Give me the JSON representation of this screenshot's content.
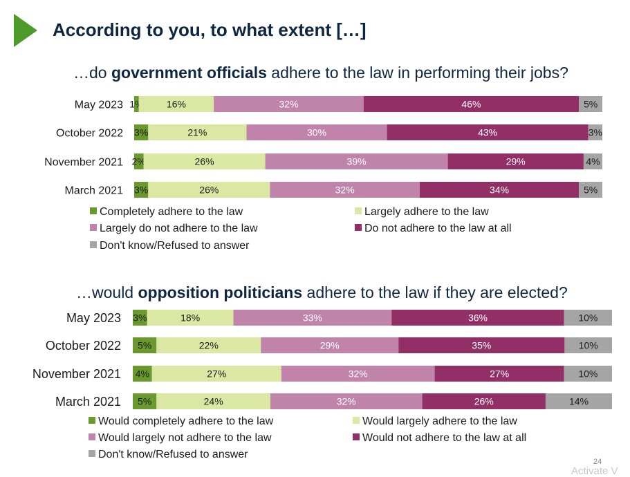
{
  "title": "According to you, to what extent […]",
  "page_number": "24",
  "watermark": "Activate V",
  "colors": {
    "completely": "#6a9a2e",
    "largely": "#dbe8a3",
    "largely_not": "#c084ab",
    "not_at_all": "#912f66",
    "dont_know": "#a5a5a5"
  },
  "chart_data": [
    {
      "type": "bar",
      "orientation": "horizontal",
      "stacked": true,
      "title_parts": [
        "…do ",
        "government officials",
        " adhere to the law in performing their jobs?"
      ],
      "categories": [
        "May 2023",
        "October 2022",
        "November 2021",
        "March 2021"
      ],
      "series": [
        {
          "name": "Completely adhere to the law",
          "values": [
            1,
            3,
            2,
            3
          ]
        },
        {
          "name": "Largely adhere to the law",
          "values": [
            16,
            21,
            26,
            26
          ]
        },
        {
          "name": "Largely do not adhere to the law",
          "values": [
            32,
            30,
            39,
            32
          ]
        },
        {
          "name": "Do not adhere to the law at all",
          "values": [
            46,
            43,
            29,
            34
          ]
        },
        {
          "name": "Don't know/Refused to answer",
          "values": [
            5,
            3,
            4,
            5
          ]
        }
      ],
      "value_suffix": "%"
    },
    {
      "type": "bar",
      "orientation": "horizontal",
      "stacked": true,
      "title_parts": [
        "…would ",
        "opposition politicians",
        " adhere to the law if they are elected?"
      ],
      "categories": [
        "May 2023",
        "October 2022",
        "November 2021",
        "March 2021"
      ],
      "series": [
        {
          "name": "Would completely adhere to the law",
          "values": [
            3,
            5,
            4,
            5
          ]
        },
        {
          "name": "Would largely adhere to the law",
          "values": [
            18,
            22,
            27,
            24
          ]
        },
        {
          "name": "Would largely not adhere to the law",
          "values": [
            33,
            29,
            32,
            32
          ]
        },
        {
          "name": "Would not adhere to the law at all",
          "values": [
            36,
            35,
            27,
            26
          ]
        },
        {
          "name": "Don't know/Refused to answer",
          "values": [
            10,
            10,
            10,
            14
          ]
        }
      ],
      "value_suffix": "%"
    }
  ]
}
